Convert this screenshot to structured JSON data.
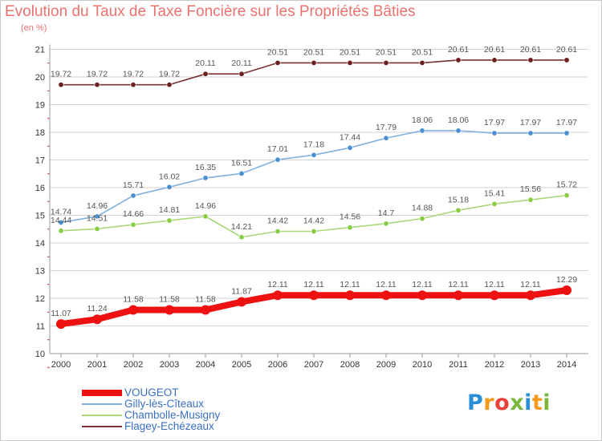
{
  "title": "Evolution du Taux de Taxe Foncière sur les Propriétés Bâties",
  "subtitle": "(en %)",
  "logo": {
    "text": "Proxiti",
    "colors": [
      "#2a8fd6",
      "#f39a1d",
      "#e8403a",
      "#7ab83b",
      "#2a8fd6",
      "#f39a1d",
      "#7ab83b"
    ]
  },
  "colors": {
    "title": "#e8726e",
    "grid": "#d2d2d2",
    "axis": "#9a9a9a",
    "tick_mark": "#d03030"
  },
  "chart_data": {
    "type": "line",
    "title": "Evolution du Taux de Taxe Foncière sur les Propriétés Bâties",
    "ylabel": "(en %)",
    "x": [
      "2000",
      "2001",
      "2002",
      "2003",
      "2004",
      "2005",
      "2006",
      "2007",
      "2008",
      "2009",
      "2010",
      "2011",
      "2012",
      "2013",
      "2014"
    ],
    "ylim": [
      10,
      21
    ],
    "yticks": [
      "10",
      "11",
      "12",
      "13",
      "14",
      "15",
      "16",
      "17",
      "18",
      "19",
      "20",
      "21"
    ],
    "grid": "horizontal",
    "legend": "bottom-left",
    "series": [
      {
        "name": "VOUGEOT",
        "color": "#ee1111",
        "line": "#ee1111",
        "emphasis": true,
        "values": [
          11.07,
          11.24,
          11.58,
          11.58,
          11.58,
          11.87,
          12.11,
          12.11,
          12.11,
          12.11,
          12.11,
          12.11,
          12.11,
          12.11,
          12.29
        ],
        "labels": [
          "11.07",
          "11.24",
          "11.58",
          "11.58",
          "11.58",
          "11.87",
          "12.11",
          "12.11",
          "12.11",
          "12.11",
          "12.11",
          "12.11",
          "12.11",
          "12.11",
          "12.29"
        ]
      },
      {
        "name": "Gilly-lès-Cîteaux",
        "color": "#4a90d0",
        "line": "#7fb0de",
        "emphasis": false,
        "values": [
          14.74,
          14.96,
          15.71,
          16.02,
          16.35,
          16.51,
          17.01,
          17.18,
          17.44,
          17.79,
          18.06,
          18.06,
          17.97,
          17.97,
          17.97
        ],
        "labels": [
          "14.74",
          "14.96",
          "15.71",
          "16.02",
          "16.35",
          "16.51",
          "17.01",
          "17.18",
          "17.44",
          "17.79",
          "18.06",
          "18.06",
          "17.97",
          "17.97",
          "17.97"
        ]
      },
      {
        "name": "Chambolle-Musigny",
        "color": "#88cc44",
        "line": "#a8d878",
        "emphasis": false,
        "values": [
          14.44,
          14.51,
          14.66,
          14.81,
          14.96,
          14.21,
          14.42,
          14.42,
          14.56,
          14.7,
          14.88,
          15.18,
          15.41,
          15.56,
          15.72
        ],
        "labels": [
          "14.44",
          "14.51",
          "14.66",
          "14.81",
          "14.96",
          "14.21",
          "14.42",
          "14.42",
          "14.56",
          "14.7",
          "14.88",
          "15.18",
          "15.41",
          "15.56",
          "15.72"
        ]
      },
      {
        "name": "Flagey-Echézeaux",
        "color": "#6b1f1f",
        "line": "#7a3030",
        "emphasis": false,
        "values": [
          19.72,
          19.72,
          19.72,
          19.72,
          20.11,
          20.11,
          20.51,
          20.51,
          20.51,
          20.51,
          20.51,
          20.61,
          20.61,
          20.61,
          20.61
        ],
        "labels": [
          "19.72",
          "19.72",
          "19.72",
          "19.72",
          "20.11",
          "20.11",
          "20.51",
          "20.51",
          "20.51",
          "20.51",
          "20.51",
          "20.61",
          "20.61",
          "20.61",
          "20.61"
        ]
      }
    ]
  }
}
